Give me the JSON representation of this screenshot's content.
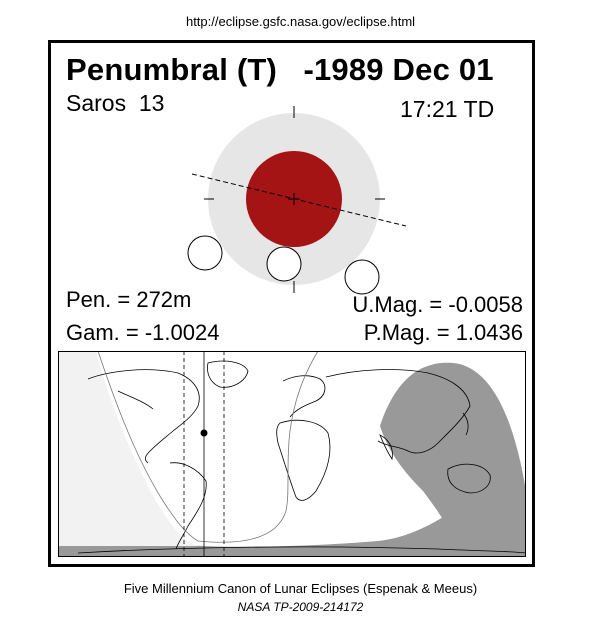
{
  "header": {
    "url": "http://eclipse.gsfc.nasa.gov/eclipse.html"
  },
  "eclipse": {
    "title": "Penumbral (T)   -1989 Dec 01",
    "saros": "Saros  13",
    "time": "17:21 TD",
    "pen": "Pen. = 272m",
    "gam": "Gam. = -1.0024",
    "umag": "U.Mag. = -0.0058",
    "pmag": "P.Mag. = 1.0436"
  },
  "colors": {
    "umbra": "#a51414",
    "penumbra": "#e6e6e6",
    "night": "#999999",
    "map_border": "#000000"
  },
  "footer": {
    "caption1": "Five Millennium Canon of Lunar Eclipses (Espenak & Meeus)",
    "caption2": "NASA TP-2009-214172"
  }
}
